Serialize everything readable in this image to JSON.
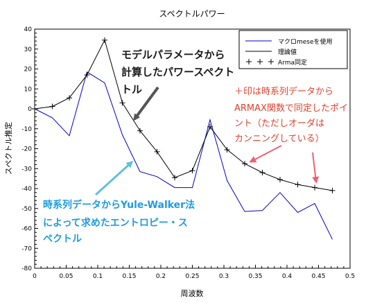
{
  "chart_data": {
    "type": "line",
    "title": "スペクトルパワー",
    "xlabel": "周波数",
    "ylabel": "スペクトル推定",
    "xlim": [
      0,
      0.5
    ],
    "ylim": [
      -80,
      40
    ],
    "x_ticks": [
      "0",
      "0.05",
      "0.1",
      "0.15",
      "0.2",
      "0.25",
      "0.3",
      "0.35",
      "0.4",
      "0.45",
      "0.5"
    ],
    "y_ticks": [
      "40",
      "30",
      "20",
      "10",
      "0",
      "-10",
      "-20",
      "-30",
      "-40",
      "-50",
      "-60",
      "-70",
      "-80"
    ],
    "grid": false,
    "legend_position": "top-right",
    "series": [
      {
        "name": "マクロmeseを使用",
        "style": "line",
        "color": "#0000cc",
        "points": [
          [
            0,
            0
          ],
          [
            0.028,
            -4.5
          ],
          [
            0.055,
            -13.5
          ],
          [
            0.083,
            18.5
          ],
          [
            0.111,
            13
          ],
          [
            0.139,
            -13
          ],
          [
            0.167,
            -31.5
          ],
          [
            0.194,
            -34
          ],
          [
            0.222,
            -39.5
          ],
          [
            0.25,
            -39.5
          ],
          [
            0.278,
            -5.5
          ],
          [
            0.305,
            -36
          ],
          [
            0.333,
            -51.5
          ],
          [
            0.361,
            -51
          ],
          [
            0.389,
            -42
          ],
          [
            0.417,
            -52
          ],
          [
            0.444,
            -47.5
          ],
          [
            0.472,
            -65.5
          ]
        ]
      },
      {
        "name": "理論値",
        "style": "line",
        "color": "#000000",
        "points": [
          [
            0,
            0
          ],
          [
            0.028,
            1.2
          ],
          [
            0.055,
            5.5
          ],
          [
            0.083,
            17
          ],
          [
            0.111,
            34.5
          ],
          [
            0.139,
            3
          ],
          [
            0.167,
            -11
          ],
          [
            0.194,
            -21.5
          ],
          [
            0.222,
            -34.5
          ],
          [
            0.25,
            -31
          ],
          [
            0.278,
            -9
          ],
          [
            0.305,
            -20.5
          ],
          [
            0.333,
            -27.5
          ],
          [
            0.361,
            -32
          ],
          [
            0.389,
            -35.5
          ],
          [
            0.417,
            -38
          ],
          [
            0.444,
            -39.5
          ],
          [
            0.472,
            -41
          ]
        ]
      },
      {
        "name": "Arma同定",
        "style": "markers",
        "marker": "+",
        "color": "#000000",
        "points": [
          [
            0,
            0
          ],
          [
            0.028,
            1.2
          ],
          [
            0.055,
            5.5
          ],
          [
            0.083,
            17
          ],
          [
            0.111,
            34.5
          ],
          [
            0.139,
            3
          ],
          [
            0.167,
            -11
          ],
          [
            0.194,
            -21.5
          ],
          [
            0.222,
            -34.5
          ],
          [
            0.25,
            -31
          ],
          [
            0.278,
            -9
          ],
          [
            0.305,
            -20.5
          ],
          [
            0.333,
            -27.5
          ],
          [
            0.361,
            -32
          ],
          [
            0.389,
            -35.5
          ],
          [
            0.417,
            -38
          ],
          [
            0.444,
            -39.5
          ],
          [
            0.472,
            -41
          ]
        ]
      }
    ],
    "annotations": [
      {
        "lines": [
          "モデルパラメータから",
          "計算したパワースペクト",
          "トル"
        ],
        "color": "#1a1a1a",
        "arrow_color": "#555555"
      },
      {
        "lines": [
          "＋印は時系列データから",
          "ARMAX関数で同定したポイ",
          "ント（ただしオーダは",
          "カンニングしている）"
        ],
        "color": "#e0402c",
        "arrow_color": "#f06070"
      },
      {
        "lines": [
          "時系列データからYule-Walker法",
          "によって求めたエントロピー・ス",
          "ペクトル"
        ],
        "color": "#1e9be0",
        "arrow_color": "#5fc0e0"
      }
    ]
  }
}
